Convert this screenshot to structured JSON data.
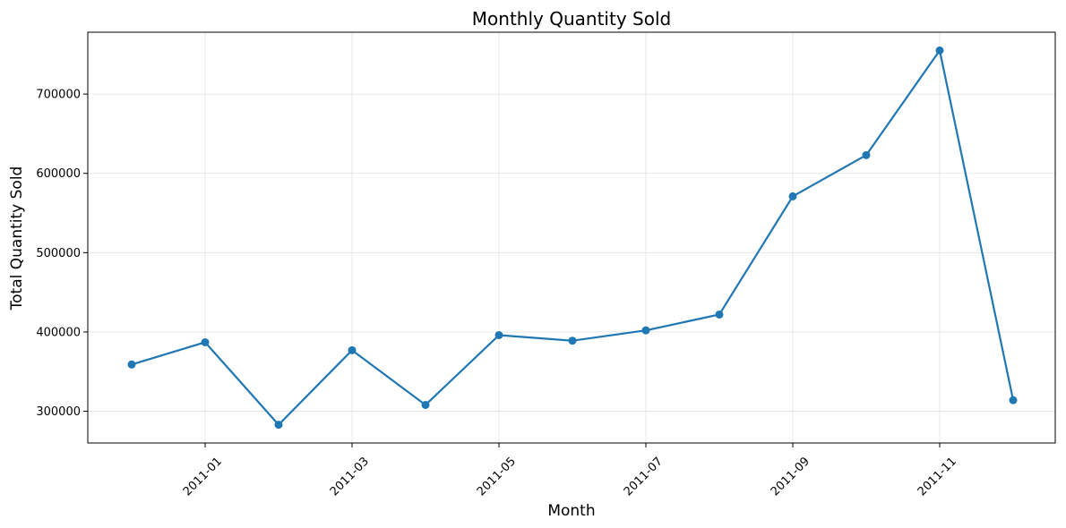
{
  "chart_data": {
    "type": "line",
    "title": "Monthly Quantity Sold",
    "xlabel": "Month",
    "ylabel": "Total Quantity Sold",
    "x": [
      "2010-12",
      "2011-01",
      "2011-02",
      "2011-03",
      "2011-04",
      "2011-05",
      "2011-06",
      "2011-07",
      "2011-08",
      "2011-09",
      "2011-10",
      "2011-11",
      "2011-12"
    ],
    "series": [
      {
        "values": [
          359000,
          387000,
          283000,
          377000,
          308000,
          396000,
          389000,
          402000,
          422000,
          571000,
          623000,
          755000,
          314000
        ],
        "color": "#1f77b4"
      }
    ],
    "xticks": [
      "2011-01",
      "2011-03",
      "2011-05",
      "2011-07",
      "2011-09",
      "2011-11"
    ],
    "yticks": [
      300000,
      400000,
      500000,
      600000,
      700000
    ],
    "ylim": [
      260000,
      778000
    ],
    "grid": true,
    "marker": "circle"
  }
}
